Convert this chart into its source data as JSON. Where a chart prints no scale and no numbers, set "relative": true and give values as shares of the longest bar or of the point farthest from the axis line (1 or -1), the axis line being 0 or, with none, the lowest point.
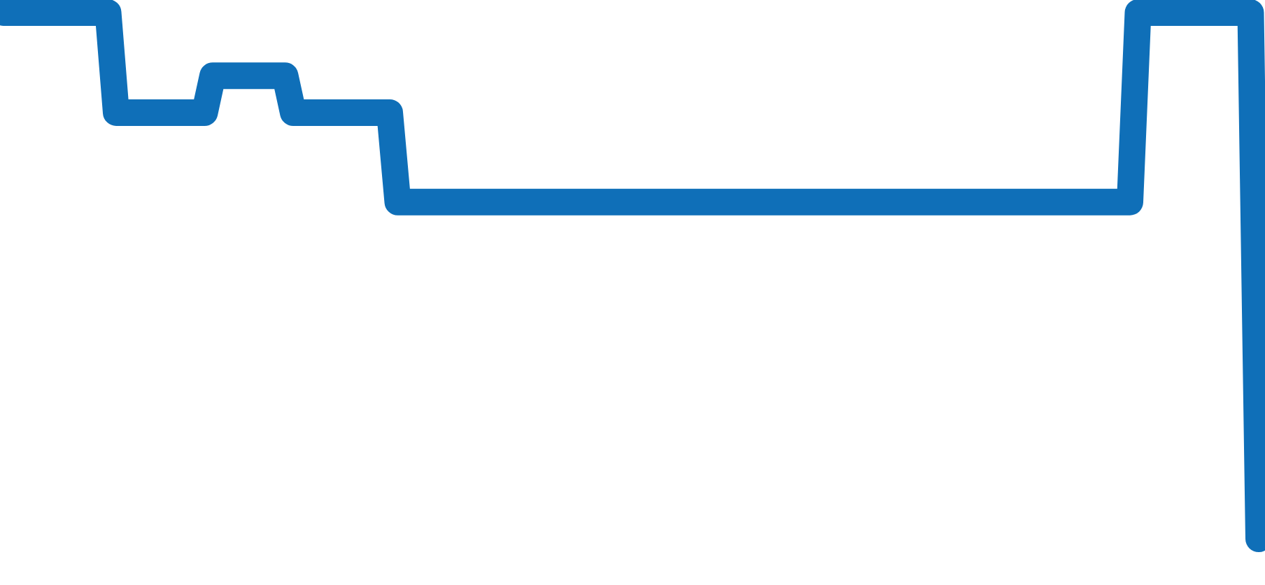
{
  "chart_data": {
    "type": "line",
    "relative": true,
    "line_style": "solid",
    "categories": [
      null,
      null,
      null,
      null,
      null,
      null,
      null,
      null,
      null,
      null,
      null,
      null,
      null,
      null,
      null,
      null,
      null,
      null,
      null,
      null,
      null,
      null,
      null,
      null,
      null,
      null,
      null,
      null,
      null,
      null,
      null,
      null,
      null,
      null,
      null,
      null,
      null,
      null,
      null,
      null,
      null,
      null,
      null,
      null,
      null,
      null,
      null,
      null,
      null,
      null,
      null,
      null,
      null,
      null,
      null,
      null,
      null,
      null,
      null,
      null,
      null,
      null,
      null,
      null,
      null,
      null,
      null,
      null,
      null,
      null,
      null,
      null,
      null,
      null,
      null,
      null,
      null,
      null,
      null,
      null,
      null,
      null,
      null,
      null,
      null,
      null,
      null,
      null,
      null,
      null,
      null,
      null,
      null,
      null,
      null,
      null,
      null,
      null,
      null,
      null,
      null,
      null,
      null,
      null,
      null,
      null,
      null,
      null,
      null,
      null,
      null,
      null,
      null,
      null,
      null,
      null,
      null,
      null,
      null,
      null,
      null,
      null,
      null,
      null,
      null,
      null,
      null,
      null,
      null,
      null,
      null,
      null,
      null,
      null,
      null,
      null,
      null,
      null,
      null,
      null,
      null,
      null,
      null,
      null,
      null,
      null,
      null,
      null,
      null,
      null,
      null,
      null,
      null,
      null,
      null,
      null,
      null
    ],
    "series": [
      {
        "color": "#0f6fb8",
        "values": [
          1,
          1,
          1,
          1,
          1,
          1,
          1,
          1,
          1,
          1,
          1,
          1,
          1,
          1,
          0.81,
          0.81,
          0.81,
          0.81,
          0.81,
          0.81,
          0.81,
          0.81,
          0.81,
          0.81,
          0.81,
          0.81,
          0.88,
          0.88,
          0.88,
          0.88,
          0.88,
          0.88,
          0.88,
          0.88,
          0.88,
          0.88,
          0.81,
          0.81,
          0.81,
          0.81,
          0.81,
          0.81,
          0.81,
          0.81,
          0.81,
          0.81,
          0.81,
          0.81,
          0.81,
          0.64,
          0.64,
          0.64,
          0.64,
          0.64,
          0.64,
          0.64,
          0.64,
          0.64,
          0.64,
          0.64,
          0.64,
          0.64,
          0.64,
          0.64,
          0.64,
          0.64,
          0.64,
          0.64,
          0.64,
          0.64,
          0.64,
          0.64,
          0.64,
          0.64,
          0.64,
          0.64,
          0.64,
          0.64,
          0.64,
          0.64,
          0.64,
          0.64,
          0.64,
          0.64,
          0.64,
          0.64,
          0.64,
          0.64,
          0.64,
          0.64,
          0.64,
          0.64,
          0.64,
          0.64,
          0.64,
          0.64,
          0.64,
          0.64,
          0.64,
          0.64,
          0.64,
          0.64,
          0.64,
          0.64,
          0.64,
          0.64,
          0.64,
          0.64,
          0.64,
          0.64,
          0.64,
          0.64,
          0.64,
          0.64,
          0.64,
          0.64,
          0.64,
          0.64,
          0.64,
          0.64,
          0.64,
          0.64,
          0.64,
          0.64,
          0.64,
          0.64,
          0.64,
          0.64,
          0.64,
          0.64,
          0.64,
          0.64,
          0.64,
          0.64,
          0.64,
          0.64,
          0.64,
          0.64,
          0.64,
          0.64,
          0.64,
          1,
          1,
          1,
          1,
          1,
          1,
          1,
          1,
          1,
          1,
          1,
          1,
          1,
          1,
          1,
          0
        ]
      }
    ]
  }
}
